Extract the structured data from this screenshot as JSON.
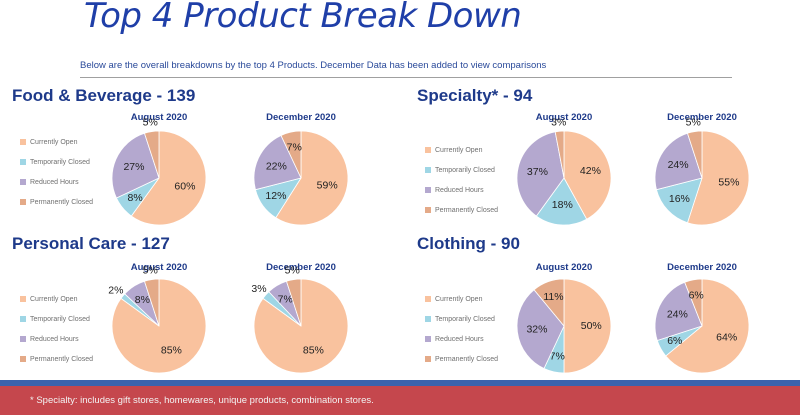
{
  "page": {
    "title": "Top 4 Product Break Down",
    "subtitle": "Below are the overall breakdowns by the top 4 Products. December Data has been added to view comparisons",
    "footnote": "* Specialty: includes gift stores, homewares, unique products, combination stores."
  },
  "legend": {
    "labels": [
      "Currently Open",
      "Temporarily Closed",
      "Reduced Hours",
      "Permanently Closed"
    ],
    "colors": [
      "#f9c29e",
      "#9fd6e5",
      "#b4a8cf",
      "#e4aa88"
    ]
  },
  "periods": [
    "August 2020",
    "December 2020"
  ],
  "sections": [
    {
      "title": "Food & Beverage - 139"
    },
    {
      "title": "Specialty* - 94"
    },
    {
      "title": "Personal Care - 127"
    },
    {
      "title": "Clothing - 90"
    }
  ],
  "chart_data": [
    {
      "type": "pie",
      "title": "Food & Beverage - 139",
      "subtitle": "August 2020",
      "labels": [
        "Currently Open",
        "Temporarily Closed",
        "Reduced Hours",
        "Permanently Closed"
      ],
      "values": [
        60,
        8,
        27,
        5
      ]
    },
    {
      "type": "pie",
      "title": "Food & Beverage - 139",
      "subtitle": "December 2020",
      "labels": [
        "Currently Open",
        "Temporarily Closed",
        "Reduced Hours",
        "Permanently Closed"
      ],
      "values": [
        59,
        12,
        22,
        7
      ]
    },
    {
      "type": "pie",
      "title": "Specialty* - 94",
      "subtitle": "August 2020",
      "labels": [
        "Currently Open",
        "Temporarily Closed",
        "Reduced Hours",
        "Permanently Closed"
      ],
      "values": [
        42,
        18,
        37,
        3
      ]
    },
    {
      "type": "pie",
      "title": "Specialty* - 94",
      "subtitle": "December 2020",
      "labels": [
        "Currently Open",
        "Temporarily Closed",
        "Reduced Hours",
        "Permanently Closed"
      ],
      "values": [
        55,
        16,
        24,
        5
      ]
    },
    {
      "type": "pie",
      "title": "Personal Care - 127",
      "subtitle": "August 2020",
      "labels": [
        "Currently Open",
        "Temporarily Closed",
        "Reduced Hours",
        "Permanently Closed"
      ],
      "values": [
        85,
        2,
        8,
        5
      ]
    },
    {
      "type": "pie",
      "title": "Personal Care - 127",
      "subtitle": "December 2020",
      "labels": [
        "Currently Open",
        "Temporarily Closed",
        "Reduced Hours",
        "Permanently Closed"
      ],
      "values": [
        85,
        3,
        7,
        5
      ]
    },
    {
      "type": "pie",
      "title": "Clothing - 90",
      "subtitle": "August 2020",
      "labels": [
        "Currently Open",
        "Temporarily Closed",
        "Reduced Hours",
        "Permanently Closed"
      ],
      "values": [
        50,
        7,
        32,
        11
      ]
    },
    {
      "type": "pie",
      "title": "Clothing - 90",
      "subtitle": "December 2020",
      "labels": [
        "Currently Open",
        "Temporarily Closed",
        "Reduced Hours",
        "Permanently Closed"
      ],
      "values": [
        64,
        6,
        24,
        6
      ]
    }
  ]
}
